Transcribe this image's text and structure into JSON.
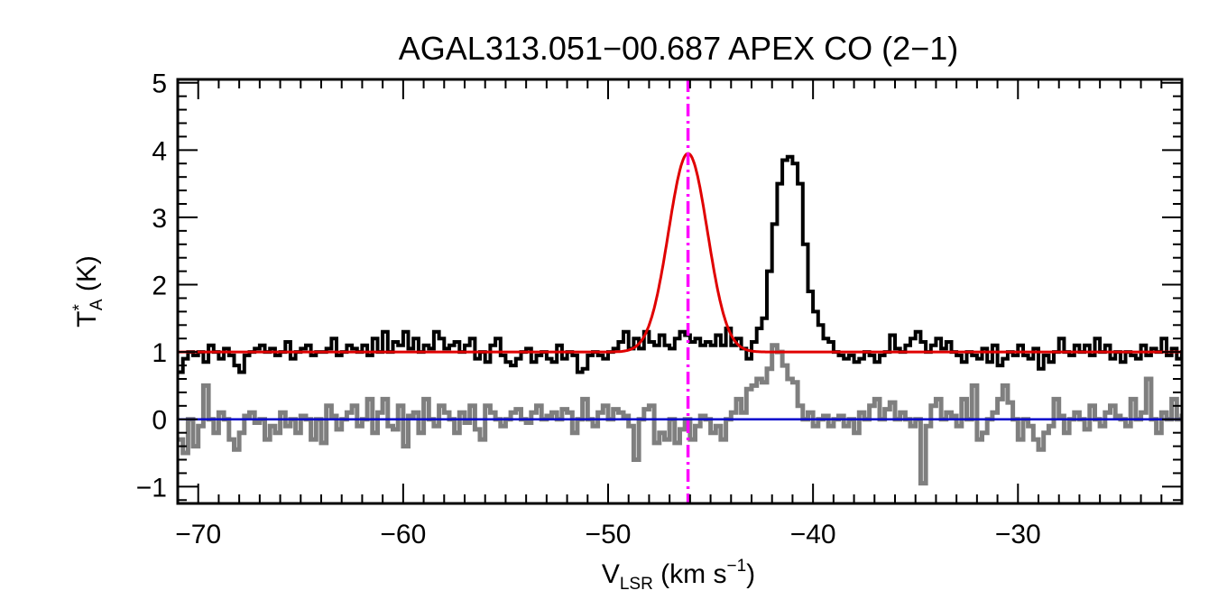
{
  "chart_data": {
    "type": "line",
    "title": "AGAL313.051−00.687  APEX CO (2−1)",
    "xlabel": {
      "main": "V",
      "sub": "LSR",
      "unit_open": " (km s",
      "unit_sup": "−1",
      "unit_close": ")"
    },
    "ylabel": {
      "main": "T",
      "sup": "*",
      "sub": "A",
      "unit": " (K)"
    },
    "xlim": [
      -71,
      -22
    ],
    "ylim": [
      -1.25,
      5.05
    ],
    "x_ticks": [
      -70,
      -60,
      -50,
      -40,
      -30
    ],
    "x_tick_labels": [
      "−70",
      "−60",
      "−50",
      "−40",
      "−30"
    ],
    "y_ticks": [
      -1,
      0,
      1,
      2,
      3,
      4,
      5
    ],
    "y_tick_labels": [
      "−1",
      "0",
      "1",
      "2",
      "3",
      "4",
      "5"
    ],
    "marker_velocity": -46.1,
    "zero_level": 0,
    "gaussian_fit": {
      "amplitude": 2.95,
      "center": -46.1,
      "sigma": 0.95,
      "baseline": 1.0
    },
    "series": [
      {
        "name": "spectrum",
        "style": "step",
        "color": "#000000",
        "x0": -71.0,
        "dx": 0.25,
        "values": [
          0.7,
          0.9,
          1.0,
          0.95,
          1.0,
          0.85,
          1.1,
          1.0,
          0.9,
          1.05,
          0.95,
          0.8,
          0.7,
          0.95,
          1.0,
          1.05,
          1.1,
          1.0,
          1.05,
          0.95,
          1.0,
          1.15,
          0.9,
          1.0,
          1.05,
          1.1,
          0.95,
          1.0,
          1.0,
          1.05,
          1.2,
          0.95,
          1.0,
          1.1,
          1.05,
          1.0,
          1.1,
          0.95,
          1.2,
          1.0,
          1.3,
          1.0,
          1.15,
          1.1,
          1.3,
          1.05,
          1.2,
          1.0,
          1.1,
          1.05,
          1.3,
          1.2,
          1.05,
          1.1,
          1.15,
          1.0,
          1.1,
          1.2,
          0.9,
          1.0,
          0.85,
          1.1,
          1.2,
          0.95,
          0.85,
          0.8,
          0.9,
          1.0,
          1.05,
          0.85,
          0.95,
          1.0,
          0.9,
          0.85,
          1.1,
          0.9,
          1.0,
          0.95,
          0.7,
          0.75,
          0.95,
          1.0,
          0.95,
          0.9,
          1.0,
          1.05,
          1.15,
          1.3,
          1.05,
          1.2,
          1.05,
          1.3,
          1.15,
          1.1,
          1.25,
          1.1,
          1.05,
          1.2,
          1.3,
          1.25,
          1.15,
          1.2,
          1.1,
          1.15,
          1.1,
          1.25,
          1.1,
          1.35,
          1.1,
          1.2,
          1.05,
          0.9,
          1.15,
          1.35,
          1.5,
          2.2,
          2.9,
          3.5,
          3.85,
          3.9,
          3.8,
          3.5,
          2.6,
          1.9,
          1.6,
          1.4,
          1.2,
          1.15,
          1.0,
          0.95,
          0.9,
          0.95,
          0.85,
          0.9,
          1.0,
          0.95,
          0.85,
          0.95,
          1.0,
          1.25,
          1.05,
          1.0,
          1.1,
          1.2,
          1.3,
          1.15,
          1.0,
          1.1,
          1.2,
          1.05,
          1.15,
          1.0,
          0.95,
          0.85,
          1.0,
          0.95,
          0.9,
          1.05,
          0.85,
          1.1,
          0.8,
          0.9,
          1.0,
          0.95,
          1.1,
          0.95,
          0.9,
          1.05,
          0.75,
          0.95,
          0.85,
          1.0,
          1.2,
          1.0,
          0.95,
          1.1,
          1.0,
          1.1,
          0.95,
          1.2,
          1.0,
          1.1,
          0.9,
          1.0,
          0.85,
          1.0,
          0.95,
          0.9,
          1.1,
          0.95,
          1.05,
          1.0,
          1.2,
          0.95,
          1.05,
          0.9,
          1.0,
          0.8
        ]
      },
      {
        "name": "residual",
        "style": "step",
        "color": "#7f7f7f",
        "x0": -71.0,
        "dx": 0.25,
        "values": [
          -0.3,
          -0.5,
          0.0,
          -0.4,
          -0.1,
          0.5,
          0.0,
          -0.2,
          0.1,
          0.0,
          -0.3,
          -0.45,
          -0.2,
          0.05,
          0.1,
          -0.05,
          0.0,
          -0.3,
          -0.1,
          -0.2,
          0.1,
          -0.1,
          0.0,
          -0.2,
          0.05,
          0.0,
          -0.3,
          0.0,
          -0.35,
          0.2,
          0.05,
          -0.15,
          0.0,
          0.1,
          0.2,
          -0.1,
          0.0,
          0.3,
          -0.2,
          0.1,
          0.3,
          -0.1,
          -0.15,
          0.2,
          -0.4,
          0.05,
          0.1,
          -0.2,
          0.3,
          0.0,
          -0.1,
          0.2,
          0.1,
          0.0,
          -0.2,
          0.1,
          -0.05,
          0.2,
          -0.15,
          -0.3,
          0.2,
          0.1,
          0.0,
          -0.1,
          0.0,
          0.1,
          0.15,
          0.0,
          -0.05,
          0.1,
          0.2,
          0.0,
          0.05,
          0.1,
          0.0,
          0.15,
          0.1,
          -0.2,
          0.0,
          0.3,
          0.0,
          -0.1,
          0.1,
          0.2,
          0.0,
          0.15,
          0.1,
          0.05,
          -0.1,
          -0.6,
          0.0,
          0.15,
          0.2,
          -0.35,
          -0.2,
          -0.3,
          0.0,
          -0.35,
          -0.15,
          0.0,
          -0.3,
          -0.1,
          0.05,
          0.0,
          -0.2,
          -0.1,
          -0.3,
          0.0,
          0.1,
          0.3,
          0.1,
          0.45,
          0.5,
          0.6,
          0.55,
          0.75,
          1.1,
          1.0,
          0.8,
          0.6,
          0.55,
          0.2,
          0.0,
          0.1,
          -0.1,
          0.0,
          0.05,
          -0.1,
          0.0,
          0.05,
          -0.1,
          0.0,
          -0.2,
          0.1,
          0.0,
          0.2,
          0.3,
          0.0,
          0.15,
          0.25,
          0.0,
          0.1,
          0.0,
          -0.1,
          0.0,
          -0.95,
          -0.1,
          0.2,
          0.3,
          0.0,
          0.1,
          0.05,
          -0.1,
          0.3,
          0.0,
          0.5,
          -0.3,
          -0.2,
          0.0,
          0.1,
          0.3,
          0.5,
          0.25,
          0.0,
          -0.3,
          0.0,
          -0.1,
          -0.3,
          -0.45,
          -0.2,
          -0.1,
          0.3,
          0.05,
          -0.2,
          0.0,
          0.1,
          0.0,
          -0.15,
          0.2,
          0.0,
          -0.1,
          0.1,
          0.2,
          0.05,
          0.0,
          -0.1,
          0.3,
          0.0,
          0.1,
          0.6,
          0.0,
          -0.2,
          0.1,
          0.0,
          0.3,
          0.0,
          0.05,
          -0.1,
          0.0
        ]
      }
    ],
    "colors": {
      "fit": "#e00000",
      "zero_line": "#0000cc",
      "marker_line": "#ff00ff"
    }
  }
}
